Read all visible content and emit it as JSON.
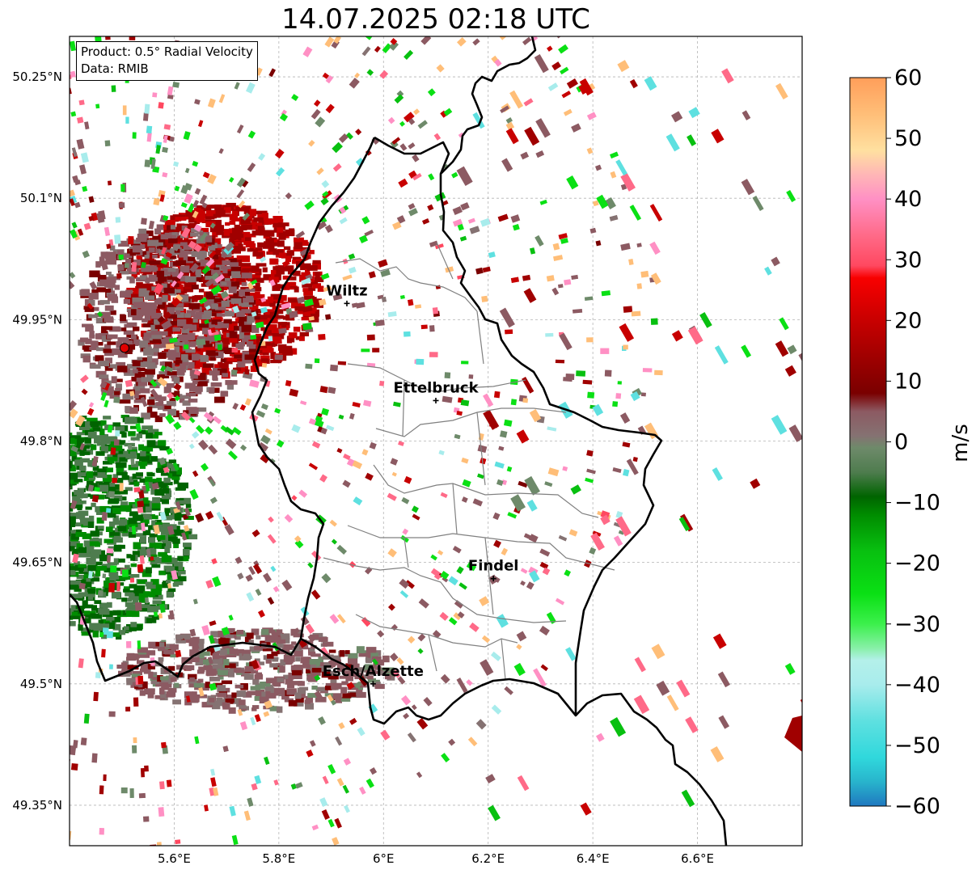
{
  "title": "14.07.2025 02:18 UTC",
  "info_box": {
    "product_line": "Product: 0.5° Radial Velocity",
    "data_line": "Data: RMIB"
  },
  "map": {
    "projection": "PlateCarree",
    "extent": {
      "lon": [
        5.4,
        6.8
      ],
      "lat": [
        49.3,
        50.3
      ]
    },
    "lat_ticks": [
      {
        "value": 50.25,
        "label": "50.25°N"
      },
      {
        "value": 50.1,
        "label": "50.1°N"
      },
      {
        "value": 49.95,
        "label": "49.95°N"
      },
      {
        "value": 49.8,
        "label": "49.8°N"
      },
      {
        "value": 49.65,
        "label": "49.65°N"
      },
      {
        "value": 49.5,
        "label": "49.5°N"
      },
      {
        "value": 49.35,
        "label": "49.35°N"
      }
    ],
    "lon_ticks": [
      {
        "value": 5.6,
        "label": "5.6°E"
      },
      {
        "value": 5.8,
        "label": "5.8°E"
      },
      {
        "value": 6.0,
        "label": "6°E"
      },
      {
        "value": 6.2,
        "label": "6.2°E"
      },
      {
        "value": 6.4,
        "label": "6.4°E"
      },
      {
        "value": 6.6,
        "label": "6.6°E"
      }
    ],
    "gridlines": true,
    "radar_site": {
      "lon": 5.505,
      "lat": 49.915,
      "color": "#e00000"
    },
    "cities": [
      {
        "name": "Wiltz",
        "lon": 5.93,
        "lat": 49.97
      },
      {
        "name": "Ettelbruck",
        "lon": 6.1,
        "lat": 49.85
      },
      {
        "name": "Findel",
        "lon": 6.21,
        "lat": 49.63
      },
      {
        "name": "Esch/Alzette",
        "lon": 5.98,
        "lat": 49.5
      }
    ]
  },
  "colorbar": {
    "label": "m/s",
    "min": -60,
    "max": 60,
    "ticks": [
      {
        "value": 60,
        "label": "60"
      },
      {
        "value": 50,
        "label": "50"
      },
      {
        "value": 40,
        "label": "40"
      },
      {
        "value": 30,
        "label": "30"
      },
      {
        "value": 20,
        "label": "20"
      },
      {
        "value": 10,
        "label": "10"
      },
      {
        "value": 0,
        "label": "0"
      },
      {
        "value": -10,
        "label": "−10"
      },
      {
        "value": -20,
        "label": "−20"
      },
      {
        "value": -30,
        "label": "−30"
      },
      {
        "value": -40,
        "label": "−40"
      },
      {
        "value": -50,
        "label": "−50"
      },
      {
        "value": -60,
        "label": "−60"
      }
    ],
    "stops": [
      {
        "v": -60,
        "c": "#1f78c0"
      },
      {
        "v": -56,
        "c": "#28b4cc"
      },
      {
        "v": -52,
        "c": "#30d8dc"
      },
      {
        "v": -46,
        "c": "#5ee0e0"
      },
      {
        "v": -40,
        "c": "#a8ecec"
      },
      {
        "v": -36,
        "c": "#b4f0ea"
      },
      {
        "v": -34,
        "c": "#88f0a8"
      },
      {
        "v": -30,
        "c": "#3cf04c"
      },
      {
        "v": -25,
        "c": "#0ae014"
      },
      {
        "v": -18,
        "c": "#08c010"
      },
      {
        "v": -12,
        "c": "#008c00"
      },
      {
        "v": -9,
        "c": "#006400"
      },
      {
        "v": -5,
        "c": "#4e7c4e"
      },
      {
        "v": -1,
        "c": "#6e8a6a"
      },
      {
        "v": 1,
        "c": "#857272"
      },
      {
        "v": 5,
        "c": "#8c5a62"
      },
      {
        "v": 8,
        "c": "#7a0000"
      },
      {
        "v": 14,
        "c": "#a00000"
      },
      {
        "v": 20,
        "c": "#c80000"
      },
      {
        "v": 27,
        "c": "#f80000"
      },
      {
        "v": 29,
        "c": "#ff4860"
      },
      {
        "v": 34,
        "c": "#ff6a88"
      },
      {
        "v": 40,
        "c": "#ff90c4"
      },
      {
        "v": 44,
        "c": "#ffb6b6"
      },
      {
        "v": 48,
        "c": "#ffe0a0"
      },
      {
        "v": 54,
        "c": "#ffbe78"
      },
      {
        "v": 60,
        "c": "#ff9e5a"
      }
    ]
  }
}
